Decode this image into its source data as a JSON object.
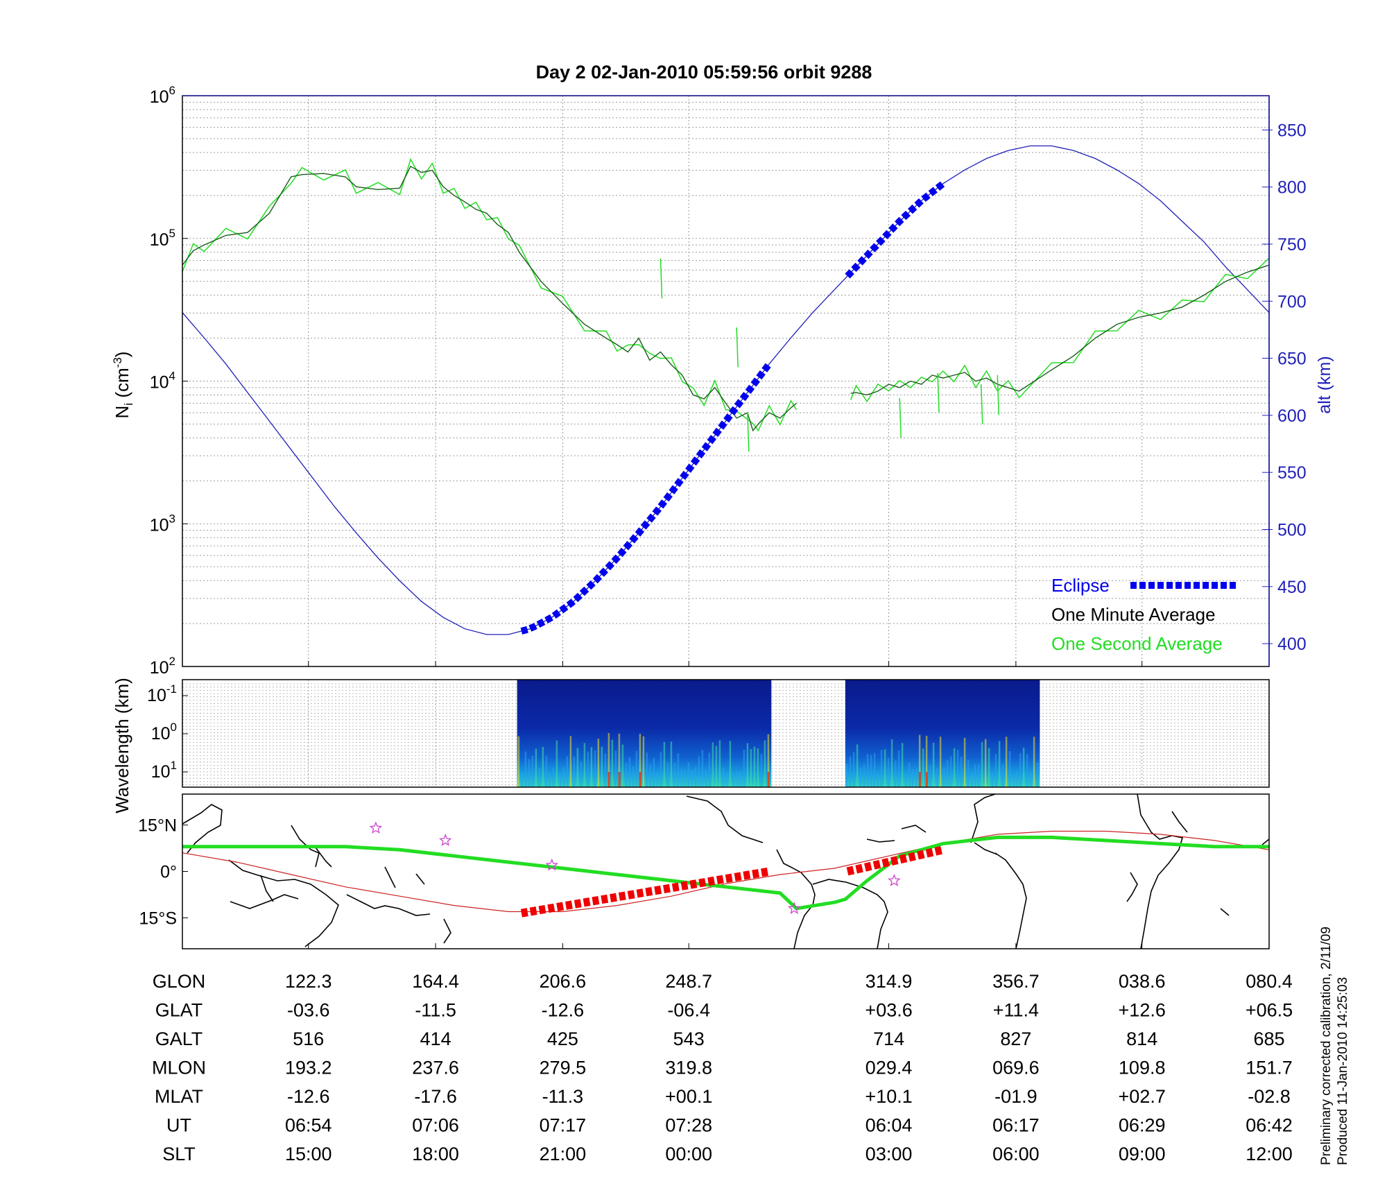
{
  "title": "Day 2  02-Jan-2010 05:59:56   orbit 9288",
  "colors": {
    "one_minute": "#1a5c1a",
    "one_second": "#22dd22",
    "eclipse": "#0000ee",
    "altitude": "#1f1fb8",
    "ground_track": "#22dd22",
    "magnetic_equator": "#cc2222",
    "eclipse_track": "#ee0000",
    "stars": "#cc44cc"
  },
  "chart_data": [
    {
      "type": "line",
      "panel": "ion density",
      "ylabel_left": "N_i (cm^-3)",
      "ylabel_right": "alt (km)",
      "y_scale": "log",
      "ylim": [
        100,
        1000000
      ],
      "y_ticks": [
        "10^2",
        "10^3",
        "10^4",
        "10^5",
        "10^6"
      ],
      "y2lim": [
        380,
        880
      ],
      "y2_ticks": [
        400,
        450,
        500,
        550,
        600,
        650,
        700,
        750,
        800,
        850
      ],
      "grid": true,
      "legend_position": "bottom-right",
      "legend": [
        {
          "label": "Eclipse",
          "color": "eclipse"
        },
        {
          "label": "One Minute Average",
          "color": "one_minute"
        },
        {
          "label": "One Second Average",
          "color": "one_second"
        }
      ],
      "ni_segments": [
        {
          "x": [
            0,
            0.01,
            0.02,
            0.04,
            0.06,
            0.08,
            0.1,
            0.11,
            0.13,
            0.15,
            0.16,
            0.18,
            0.2,
            0.21,
            0.22,
            0.23,
            0.24,
            0.25,
            0.26,
            0.27,
            0.28,
            0.29,
            0.3,
            0.31,
            0.33,
            0.35,
            0.37,
            0.39,
            0.4,
            0.41,
            0.42,
            0.43,
            0.44,
            0.45,
            0.46,
            0.47,
            0.48,
            0.49,
            0.5,
            0.51,
            0.52,
            0.525,
            0.53,
            0.54,
            0.55,
            0.56,
            0.565
          ],
          "y": [
            65000,
            82000,
            90000,
            105000,
            110000,
            150000,
            270000,
            280000,
            285000,
            270000,
            230000,
            220000,
            225000,
            320000,
            290000,
            300000,
            230000,
            200000,
            180000,
            160000,
            150000,
            125000,
            110000,
            80000,
            50000,
            35000,
            25000,
            20000,
            18000,
            16000,
            20000,
            14000,
            16000,
            13000,
            11000,
            8000,
            7500,
            9000,
            7000,
            5500,
            6000,
            4500,
            5000,
            6000,
            5500,
            6500,
            7000
          ]
        },
        {
          "x": [
            0.615,
            0.62,
            0.63,
            0.64,
            0.65,
            0.66,
            0.67,
            0.68,
            0.69,
            0.7,
            0.71,
            0.72,
            0.73,
            0.74,
            0.75,
            0.76,
            0.77,
            0.8,
            0.82,
            0.84,
            0.86,
            0.88,
            0.9,
            0.92,
            0.94,
            0.96,
            0.98,
            1.0
          ],
          "y": [
            8200,
            8300,
            8000,
            8500,
            9500,
            9000,
            10000,
            9500,
            11000,
            10500,
            11000,
            11500,
            10000,
            10500,
            9500,
            9000,
            8500,
            12000,
            15000,
            20000,
            25000,
            28000,
            30000,
            33000,
            40000,
            50000,
            58000,
            65000
          ]
        }
      ],
      "one_second_spikes": [
        {
          "x": 0.66,
          "y": 4000
        },
        {
          "x": 0.695,
          "y": 6000
        },
        {
          "x": 0.735,
          "y": 5000
        },
        {
          "x": 0.75,
          "y": 5800
        },
        {
          "x": 0.52,
          "y": 3200
        },
        {
          "x": 0.51,
          "y": 12500
        },
        {
          "x": 0.44,
          "y": 38000
        }
      ],
      "altitude": {
        "x": [
          0,
          0.02,
          0.04,
          0.06,
          0.08,
          0.1,
          0.12,
          0.14,
          0.16,
          0.18,
          0.2,
          0.22,
          0.24,
          0.26,
          0.28,
          0.3,
          0.32,
          0.34,
          0.36,
          0.38,
          0.4,
          0.42,
          0.44,
          0.46,
          0.48,
          0.5,
          0.52,
          0.54,
          0.56,
          0.58,
          0.6,
          0.62,
          0.64,
          0.66,
          0.68,
          0.7,
          0.72,
          0.74,
          0.76,
          0.78,
          0.8,
          0.82,
          0.84,
          0.86,
          0.88,
          0.9,
          0.92,
          0.94,
          0.96,
          0.98,
          1.0
        ],
        "y": [
          690,
          668,
          645,
          620,
          595,
          570,
          545,
          520,
          497,
          475,
          455,
          437,
          423,
          413,
          408,
          408,
          413,
          423,
          437,
          455,
          475,
          497,
          520,
          545,
          570,
          595,
          620,
          645,
          668,
          690,
          710,
          730,
          750,
          770,
          788,
          803,
          815,
          825,
          832,
          836,
          836,
          832,
          825,
          815,
          803,
          788,
          770,
          752,
          730,
          710,
          690
        ]
      },
      "eclipse_segments": [
        {
          "x_start": 0.312,
          "x_end": 0.54
        },
        {
          "x_start": 0.612,
          "x_end": 0.7
        }
      ]
    },
    {
      "type": "heatmap",
      "panel": "spectrogram",
      "ylabel": "Wavelength (km)",
      "y_ticks": [
        "10^-1",
        "10^0",
        "10^1"
      ],
      "grid": true,
      "blocks": [
        {
          "x_start": 0.308,
          "x_end": 0.542
        },
        {
          "x_start": 0.61,
          "x_end": 0.789
        }
      ]
    },
    {
      "type": "map",
      "panel": "ground track",
      "y_ticks": [
        "15°N",
        "0°",
        "15°S"
      ],
      "ylim": [
        -25,
        25
      ],
      "ground_track": {
        "x": [
          0,
          0.05,
          0.1,
          0.15,
          0.2,
          0.25,
          0.3,
          0.35,
          0.4,
          0.45,
          0.5,
          0.55,
          0.565,
          0.6,
          0.61,
          0.63,
          0.66,
          0.7,
          0.75,
          0.8,
          0.85,
          0.9,
          0.95,
          1.0
        ],
        "y": [
          8,
          8,
          8,
          8,
          7,
          5,
          3,
          1,
          -1,
          -3,
          -5,
          -7,
          -12,
          -10,
          -9,
          -3,
          5,
          9,
          11,
          11,
          10,
          9,
          8,
          8
        ]
      },
      "magnetic_equator": {
        "x": [
          0,
          0.05,
          0.1,
          0.15,
          0.2,
          0.25,
          0.3,
          0.35,
          0.4,
          0.45,
          0.5,
          0.55,
          0.6,
          0.65,
          0.7,
          0.75,
          0.8,
          0.85,
          0.9,
          0.95,
          1.0
        ],
        "y": [
          6,
          3,
          -1,
          -5,
          -8,
          -11,
          -13,
          -13,
          -11,
          -8,
          -4,
          -1,
          1,
          5,
          9,
          12,
          13,
          13,
          12,
          10,
          7
        ]
      },
      "eclipse_track_segments": [
        {
          "x": [
            0.312,
            0.54
          ],
          "y": [
            -13.5,
            0
          ]
        },
        {
          "x": [
            0.612,
            0.7
          ],
          "y": [
            0,
            7
          ]
        }
      ],
      "stars": [
        {
          "x": 0.178,
          "y": 14
        },
        {
          "x": 0.242,
          "y": 10
        },
        {
          "x": 0.34,
          "y": 2
        },
        {
          "x": 0.563,
          "y": -12
        },
        {
          "x": 0.655,
          "y": -3
        }
      ]
    }
  ],
  "table": {
    "columns_x": [
      0.116,
      0.233,
      0.35,
      0.466,
      0.65,
      0.767,
      0.883,
      1.0
    ],
    "rows": [
      {
        "label": "GLON",
        "values": [
          "122.3",
          "164.4",
          "206.6",
          "248.7",
          "314.9",
          "356.7",
          "038.6",
          "080.4"
        ]
      },
      {
        "label": "GLAT",
        "values": [
          "-03.6",
          "-11.5",
          "-12.6",
          "-06.4",
          "+03.6",
          "+11.4",
          "+12.6",
          "+06.5"
        ]
      },
      {
        "label": "GALT",
        "values": [
          "516",
          "414",
          "425",
          "543",
          "714",
          "827",
          "814",
          "685"
        ]
      },
      {
        "label": "MLON",
        "values": [
          "193.2",
          "237.6",
          "279.5",
          "319.8",
          "029.4",
          "069.6",
          "109.8",
          "151.7"
        ]
      },
      {
        "label": "MLAT",
        "values": [
          "-12.6",
          "-17.6",
          "-11.3",
          "+00.1",
          "+10.1",
          "-01.9",
          "+02.7",
          "-02.8"
        ]
      },
      {
        "label": "UT",
        "values": [
          "06:54",
          "07:06",
          "07:17",
          "07:28",
          "06:04",
          "06:17",
          "06:29",
          "06:42"
        ]
      },
      {
        "label": "SLT",
        "values": [
          "15:00",
          "18:00",
          "21:00",
          "00:00",
          "03:00",
          "06:00",
          "09:00",
          "12:00"
        ]
      }
    ]
  },
  "footnote": {
    "line1": "Preliminary corrected calibration, 2/11/09",
    "line2": "Produced 11-Jan-2010 14:25:03"
  }
}
